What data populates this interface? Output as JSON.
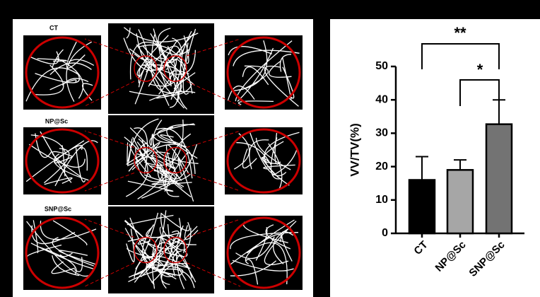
{
  "panels": {
    "labels": [
      "CT",
      "NP@Sc",
      "SNP@Sc"
    ]
  },
  "chart_data": {
    "type": "bar",
    "y_label": "VV/TV(%)",
    "categories": [
      "CT",
      "NP@Sc",
      "SNP@Sc"
    ],
    "values": [
      16,
      19,
      32.7
    ],
    "errors": [
      7,
      3,
      7.3
    ],
    "colors": [
      "#000000",
      "#a6a6a6",
      "#737373"
    ],
    "ylim": [
      0,
      50
    ],
    "yticks": [
      0,
      10,
      20,
      30,
      40,
      50
    ],
    "annotations": [
      "**",
      "*"
    ]
  }
}
